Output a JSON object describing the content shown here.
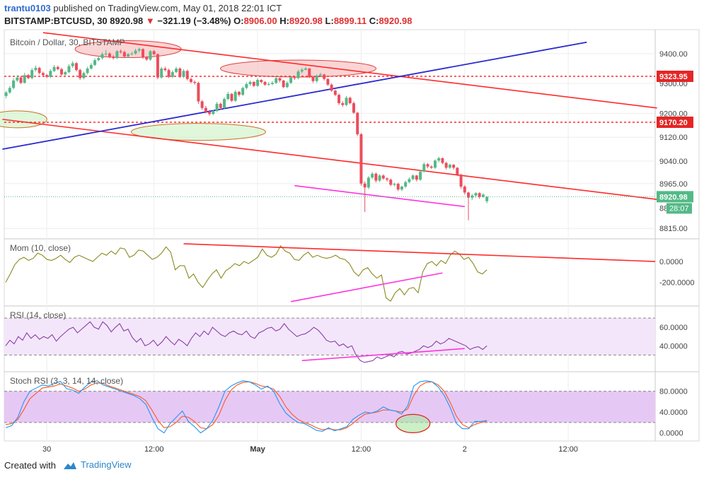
{
  "header": {
    "author": "trantu0103",
    "published_text": "published on TradingView.com, May 01, 2018 22:01 ICT",
    "symbol": "BITSTAMP:BTCUSD, 30",
    "last": "8920.98",
    "change_arrow": "▼",
    "change": "−321.19 (−3.48%)",
    "o_label": "O:",
    "o_value": "8906.00",
    "h_label": "H:",
    "h_value": "8920.98",
    "l_label": "L:",
    "l_value": "8899.11",
    "c_label": "C:",
    "c_value": "8920.98"
  },
  "footer": {
    "created_with": "Created with",
    "brand": "TradingView"
  },
  "colors": {
    "up": "#53b987",
    "down": "#eb4d5c",
    "trend_red": "#ff2a2a",
    "trend_blue": "#2a2ad0",
    "support_magenta": "#ff33dd",
    "mom_line": "#8a8a20",
    "rsi_line": "#8a3fa8",
    "stoch_k": "#2196f3",
    "stoch_d": "#ff5722"
  },
  "chart_data": [
    {
      "type": "candlestick",
      "title": "Bitcoin / Dollar, 30, BITSTAMP",
      "ylim": [
        8780,
        9480
      ],
      "yticks": [
        9400,
        9300,
        9200,
        9120,
        9040,
        8965,
        8815
      ],
      "ytick_labels": [
        "9400.00",
        "9300.00",
        "9200.00",
        "9120.00",
        "9040.00",
        "8965.00",
        "8815.00"
      ],
      "x_labels": [
        "30",
        "12:00",
        "May",
        "12:00",
        "2",
        "12:00"
      ],
      "x_label_index": [
        11,
        40,
        68,
        96,
        124,
        152
      ],
      "n_slots": 176,
      "grid": true,
      "last_price": 8920.98,
      "last_price_label": "8920.98",
      "countdown_label": "28:07",
      "partial_tick_label": "88",
      "levels": [
        {
          "price": 9323.95,
          "label": "9323.95",
          "style": "dotted-red"
        },
        {
          "price": 9170.2,
          "label": "9170.20",
          "style": "dotted-red"
        }
      ],
      "close": [
        9270,
        9285,
        9310,
        9320,
        9302,
        9328,
        9318,
        9345,
        9352,
        9335,
        9328,
        9322,
        9342,
        9355,
        9348,
        9330,
        9338,
        9358,
        9368,
        9345,
        9318,
        9335,
        9350,
        9362,
        9378,
        9385,
        9398,
        9400,
        9390,
        9385,
        9408,
        9405,
        9390,
        9398,
        9400,
        9410,
        9415,
        9388,
        9380,
        9408,
        9398,
        9320,
        9350,
        9345,
        9322,
        9338,
        9350,
        9322,
        9342,
        9315,
        9305,
        9302,
        9240,
        9218,
        9205,
        9198,
        9208,
        9232,
        9218,
        9248,
        9265,
        9242,
        9272,
        9262,
        9285,
        9298,
        9305,
        9292,
        9312,
        9305,
        9296,
        9298,
        9302,
        9318,
        9310,
        9288,
        9302,
        9320,
        9318,
        9340,
        9346,
        9350,
        9322,
        9308,
        9326,
        9330,
        9315,
        9296,
        9276,
        9262,
        9234,
        9228,
        9252,
        9234,
        9202,
        9130,
        8965,
        8952,
        8985,
        8998,
        8975,
        8992,
        8982,
        8978,
        8961,
        8964,
        8945,
        8955,
        8970,
        8980,
        8992,
        8978,
        9005,
        9030,
        9022,
        9018,
        9042,
        9050,
        9034,
        9018,
        9028,
        9018,
        8995,
        8955,
        8935,
        8918,
        8925,
        8933,
        8920,
        8928,
        8921
      ],
      "open": [
        9258,
        9270,
        9285,
        9310,
        9320,
        9302,
        9328,
        9318,
        9345,
        9352,
        9335,
        9328,
        9322,
        9342,
        9355,
        9348,
        9330,
        9338,
        9358,
        9368,
        9345,
        9318,
        9335,
        9350,
        9362,
        9378,
        9385,
        9398,
        9400,
        9390,
        9385,
        9408,
        9405,
        9390,
        9398,
        9400,
        9410,
        9415,
        9388,
        9380,
        9408,
        9398,
        9320,
        9350,
        9345,
        9322,
        9338,
        9350,
        9322,
        9342,
        9315,
        9305,
        9302,
        9240,
        9218,
        9205,
        9198,
        9208,
        9232,
        9218,
        9248,
        9265,
        9242,
        9272,
        9262,
        9285,
        9298,
        9305,
        9292,
        9312,
        9305,
        9296,
        9298,
        9302,
        9318,
        9310,
        9288,
        9302,
        9320,
        9318,
        9340,
        9346,
        9350,
        9322,
        9308,
        9326,
        9330,
        9315,
        9296,
        9276,
        9262,
        9234,
        9228,
        9252,
        9234,
        9202,
        9130,
        8965,
        8952,
        8985,
        8998,
        8975,
        8992,
        8982,
        8978,
        8961,
        8964,
        8945,
        8955,
        8970,
        8980,
        8992,
        8978,
        9005,
        9030,
        9022,
        9018,
        9042,
        9050,
        9034,
        9018,
        9028,
        9018,
        8995,
        8955,
        8935,
        8918,
        8925,
        8933,
        8920,
        8906
      ],
      "high": [
        9275,
        9292,
        9318,
        9328,
        9325,
        9336,
        9332,
        9352,
        9360,
        9356,
        9340,
        9332,
        9348,
        9362,
        9360,
        9352,
        9342,
        9364,
        9375,
        9372,
        9350,
        9340,
        9356,
        9368,
        9384,
        9392,
        9404,
        9412,
        9405,
        9395,
        9412,
        9414,
        9410,
        9402,
        9406,
        9416,
        9420,
        9418,
        9392,
        9412,
        9412,
        9400,
        9356,
        9356,
        9350,
        9344,
        9356,
        9354,
        9348,
        9346,
        9320,
        9310,
        9306,
        9245,
        9225,
        9212,
        9212,
        9238,
        9236,
        9254,
        9272,
        9268,
        9278,
        9275,
        9290,
        9304,
        9310,
        9308,
        9318,
        9314,
        9308,
        9304,
        9308,
        9324,
        9320,
        9312,
        9308,
        9326,
        9324,
        9346,
        9352,
        9356,
        9352,
        9326,
        9330,
        9336,
        9332,
        9318,
        9300,
        9280,
        9266,
        9240,
        9258,
        9256,
        9240,
        9205,
        9134,
        8972,
        8990,
        9004,
        9002,
        8996,
        8996,
        8986,
        8982,
        8968,
        8968,
        8958,
        8975,
        8986,
        8996,
        8994,
        9010,
        9036,
        9034,
        9026,
        9046,
        9055,
        9052,
        9038,
        9032,
        9030,
        9020,
        8998,
        8960,
        8938,
        8930,
        8936,
        8936,
        8932,
        8922
      ],
      "low": [
        9250,
        9265,
        9280,
        9305,
        9298,
        9300,
        9314,
        9314,
        9340,
        9330,
        9322,
        9318,
        9318,
        9338,
        9344,
        9326,
        9326,
        9334,
        9352,
        9340,
        9312,
        9314,
        9330,
        9346,
        9358,
        9374,
        9380,
        9392,
        9384,
        9380,
        9382,
        9400,
        9386,
        9386,
        9394,
        9396,
        9404,
        9382,
        9376,
        9376,
        9394,
        9314,
        9316,
        9340,
        9318,
        9318,
        9334,
        9318,
        9318,
        9310,
        9300,
        9296,
        9232,
        9212,
        9200,
        9192,
        9194,
        9204,
        9212,
        9214,
        9244,
        9238,
        9238,
        9256,
        9258,
        9280,
        9292,
        9288,
        9288,
        9300,
        9292,
        9292,
        9294,
        9298,
        9304,
        9284,
        9284,
        9298,
        9312,
        9314,
        9334,
        9344,
        9318,
        9302,
        9302,
        9322,
        9310,
        9292,
        9272,
        9258,
        9228,
        9222,
        9224,
        9230,
        9198,
        9124,
        8958,
        8870,
        8946,
        8980,
        8968,
        8970,
        8978,
        8972,
        8956,
        8956,
        8940,
        8940,
        8950,
        8966,
        8976,
        8972,
        8974,
        9002,
        9016,
        9014,
        9014,
        9036,
        9030,
        9012,
        9014,
        9012,
        8990,
        8948,
        8928,
        8842,
        8910,
        8918,
        8914,
        8918,
        8899
      ]
    },
    {
      "type": "line",
      "title": "Mom (10, close)",
      "ylim": [
        -400,
        190
      ],
      "yticks": [
        0,
        -200
      ],
      "ytick_labels": [
        "0.0000",
        "-200.0000"
      ],
      "values": [
        -200,
        -120,
        -30,
        20,
        40,
        10,
        30,
        80,
        60,
        20,
        10,
        30,
        60,
        20,
        -10,
        40,
        60,
        40,
        20,
        0,
        40,
        80,
        60,
        100,
        70,
        130,
        120,
        40,
        60,
        110,
        100,
        60,
        20,
        40,
        80,
        140,
        90,
        -80,
        -40,
        -40,
        -160,
        -120,
        -200,
        -250,
        -180,
        -120,
        -80,
        -160,
        -90,
        -60,
        -20,
        -40,
        0,
        -20,
        10,
        40,
        120,
        60,
        40,
        70,
        150,
        100,
        80,
        20,
        10,
        60,
        90,
        40,
        60,
        40,
        30,
        40,
        60,
        30,
        20,
        -20,
        -100,
        -140,
        -80,
        -60,
        -120,
        -160,
        -130,
        -350,
        -380,
        -300,
        -260,
        -320,
        -260,
        -250,
        -300,
        -100,
        -20,
        0,
        -40,
        10,
        -20,
        60,
        100,
        70,
        20,
        40,
        -20,
        -100,
        -120,
        -80
      ],
      "start_index": 0,
      "step": 1.28
    },
    {
      "type": "line",
      "title": "RSI (14, close)",
      "ylim": [
        15,
        80
      ],
      "yticks": [
        60,
        40
      ],
      "ytick_labels": [
        "60.0000",
        "40.0000"
      ],
      "bands": [
        70,
        30
      ],
      "values": [
        40,
        46,
        42,
        50,
        46,
        54,
        48,
        52,
        47,
        50,
        48,
        52,
        45,
        50,
        54,
        58,
        60,
        54,
        58,
        62,
        66,
        60,
        58,
        66,
        62,
        55,
        60,
        64,
        56,
        58,
        49,
        44,
        48,
        40,
        42,
        46,
        40,
        44,
        50,
        45,
        41,
        47,
        44,
        40,
        48,
        54,
        50,
        56,
        52,
        60,
        56,
        52,
        50,
        54,
        56,
        53,
        52,
        56,
        50,
        48,
        54,
        56,
        59,
        60,
        56,
        58,
        64,
        58,
        54,
        50,
        52,
        53,
        56,
        60,
        57,
        52,
        46,
        44,
        45,
        40,
        42,
        38,
        40,
        30,
        24,
        22,
        23,
        24,
        28,
        26,
        28,
        30,
        28,
        33,
        34,
        31,
        32,
        34,
        36,
        40,
        38,
        40,
        45,
        42,
        44,
        48,
        46,
        44,
        42,
        40,
        36,
        38,
        39,
        36,
        40
      ],
      "start_index": 0,
      "step": 1.11
    },
    {
      "type": "line",
      "title": "Stoch RSI (3, 3, 14, 14, close)",
      "ylim": [
        -10,
        112
      ],
      "yticks": [
        80,
        40,
        0
      ],
      "ytick_labels": [
        "80.0000",
        "40.0000",
        "0.0000"
      ],
      "bands": [
        80,
        20
      ],
      "series": [
        {
          "key": "k",
          "values": [
            10,
            14,
            30,
            60,
            80,
            86,
            92,
            90,
            95,
            99,
            85,
            82,
            76,
            88,
            98,
            100,
            92,
            88,
            84,
            80,
            76,
            72,
            66,
            55,
            30,
            8,
            0,
            18,
            30,
            42,
            22,
            12,
            0,
            8,
            24,
            50,
            80,
            90,
            96,
            100,
            98,
            92,
            84,
            90,
            80,
            56,
            38,
            28,
            20,
            18,
            12,
            5,
            3,
            10,
            4,
            8,
            12,
            26,
            34,
            40,
            38,
            42,
            50,
            44,
            42,
            36,
            52,
            90,
            98,
            100,
            98,
            88,
            72,
            48,
            18,
            8,
            8,
            22,
            22,
            24
          ]
        },
        {
          "key": "d",
          "values": [
            16,
            18,
            26,
            45,
            66,
            76,
            86,
            88,
            90,
            94,
            90,
            86,
            80,
            84,
            92,
            96,
            95,
            90,
            86,
            82,
            78,
            74,
            70,
            62,
            44,
            24,
            10,
            12,
            20,
            32,
            30,
            22,
            10,
            8,
            16,
            34,
            62,
            82,
            92,
            97,
            98,
            95,
            90,
            88,
            84,
            70,
            50,
            36,
            26,
            20,
            16,
            10,
            6,
            8,
            6,
            6,
            10,
            18,
            28,
            36,
            38,
            40,
            44,
            44,
            42,
            40,
            46,
            72,
            90,
            97,
            98,
            92,
            80,
            58,
            32,
            16,
            10,
            16,
            20,
            22
          ]
        }
      ],
      "start_index": 0,
      "step": 1.97
    }
  ]
}
